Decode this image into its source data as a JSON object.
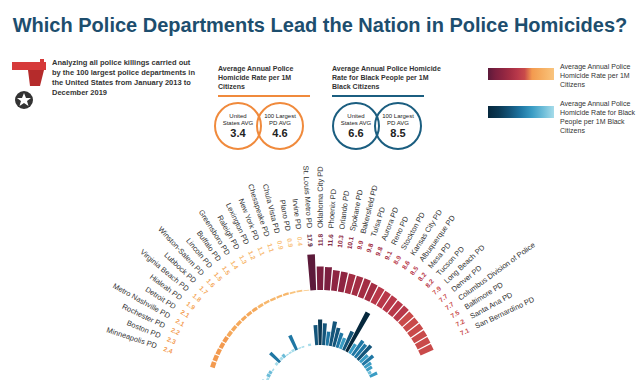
{
  "chart_data": {
    "type": "radial_bar",
    "title": "Which Police Departments Lead the Nation in Police Homicides?",
    "subtitle": "Analyzing all police killings carried out by the 100 largest police departments in the United States from January 2013 to December 2019",
    "categories": [
      "Minneapolis PD",
      "Boston PD",
      "Rochester PD",
      "Metro Nashville PD",
      "Detroit PD",
      "Hialeah PD",
      "Virginia Beach PD",
      "Lubbock PD",
      "Winston-Salem PD",
      "Lincoln PD",
      "Buffalo PD",
      "Greensboro PD",
      "Raleigh PD",
      "Lexington PD",
      "New York PD",
      "Chesapeake PD",
      "Chula Vista PD",
      "Plano PD",
      "Irvine PD",
      "St. Louis Metro PD",
      "Oklahoma City PD",
      "Phoenix PD",
      "Orlando PD",
      "Spokane PD",
      "Bakersfield PD",
      "Tulsa PD",
      "Aurora PD",
      "Reno PD",
      "Stockton PD",
      "Kansas City PD",
      "Albuquerque PD",
      "Mesa PD",
      "Tucson PD",
      "Long Beach PD",
      "Denver PD",
      "Columbus Division of Police",
      "Baltimore PD",
      "Santa Ana PD",
      "San Bernardino PD"
    ],
    "series": [
      {
        "name": "Average Annual Police Homicide Rate per 1M Citizens",
        "color": "#f08a3c",
        "data_labels": true,
        "values": [
          2.4,
          2.3,
          2.2,
          2.1,
          2.1,
          1.9,
          1.8,
          1.7,
          1.6,
          1.5,
          1.5,
          1.4,
          1.3,
          1.2,
          1.1,
          1.1,
          0.9,
          0.9,
          0.4,
          17.9,
          11.8,
          11.6,
          10.3,
          10.1,
          9.9,
          9.8,
          9.8,
          9.1,
          8.9,
          8.6,
          8.5,
          8.2,
          8.2,
          7.9,
          7.7,
          7.7,
          7.5,
          7.2,
          7.1
        ],
        "colors": [
          "#f39a4f",
          "#f39a4f",
          "#f39a4f",
          "#f39a4f",
          "#f39a4f",
          "#f5a95c",
          "#f5a95c",
          "#f5a95c",
          "#f5a95c",
          "#f5a95c",
          "#f5a95c",
          "#f7b76c",
          "#f7b76c",
          "#f7b76c",
          "#f7b76c",
          "#f7b76c",
          "#f9c47e",
          "#f9c47e",
          "#f9c47e",
          "#5c1a3a",
          "#7b1f3f",
          "#7b1f3f",
          "#8e2541",
          "#8e2541",
          "#a32d43",
          "#a32d43",
          "#a32d43",
          "#a32d43",
          "#b8384a",
          "#b8384a",
          "#b8384a",
          "#b8384a",
          "#b8384a",
          "#c94a4a",
          "#c94a4a",
          "#c94a4a",
          "#c94a4a",
          "#c94a4a",
          "#c94a4a"
        ],
        "averages": [
          {
            "label": "United States AVG",
            "value": 3.4
          },
          {
            "label": "100 Largest PD AVG",
            "value": 4.6
          }
        ]
      },
      {
        "name": "Average Annual Police Homicide Rate for Black People per 1M Black Citizens",
        "color": "#1b5e80",
        "axis": "y2",
        "data_labels": false,
        "values": [
          9.6,
          4.2,
          6.1,
          5.4,
          2.3,
          0,
          4.7,
          21.6,
          4.9,
          6.2,
          2.1,
          2.9,
          4.1,
          25.9,
          2.2,
          2.4,
          0,
          3.6,
          0,
          32.0,
          40.8,
          34.7,
          22.3,
          39.8,
          31.2,
          24.5,
          18.6,
          33.1,
          71.5,
          17.9,
          28.8,
          27.0,
          31.0,
          16.7,
          22.4,
          12.9,
          10.4,
          5.2,
          13.0
        ],
        "colors": [
          "#6cbcd8",
          "#a6dcea",
          "#6cbcd8",
          "#6cbcd8",
          "#a6dcea",
          "#a6dcea",
          "#a6dcea",
          "#1f77a4",
          "#a6dcea",
          "#6cbcd8",
          "#a6dcea",
          "#a6dcea",
          "#a6dcea",
          "#1f77a4",
          "#a6dcea",
          "#a6dcea",
          "#a6dcea",
          "#a6dcea",
          "#a6dcea",
          "#14557a",
          "#0b3954",
          "#14557a",
          "#1f77a4",
          "#14557a",
          "#14557a",
          "#1f77a4",
          "#3a9cc4",
          "#14557a",
          "#06283d",
          "#3a9cc4",
          "#1f77a4",
          "#1f77a4",
          "#14557a",
          "#3a9cc4",
          "#1f77a4",
          "#3a9cc4",
          "#3a9cc4",
          "#6cbcd8",
          "#3a9cc4"
        ],
        "averages": [
          {
            "label": "United States AVG",
            "value": 6.6
          },
          {
            "label": "100 Largest PD AVG",
            "value": 8.5
          }
        ]
      }
    ],
    "ylim": [
      0,
      20
    ],
    "y2lim": [
      0,
      80
    ],
    "tick_labels": "x",
    "legend": "top right"
  }
}
